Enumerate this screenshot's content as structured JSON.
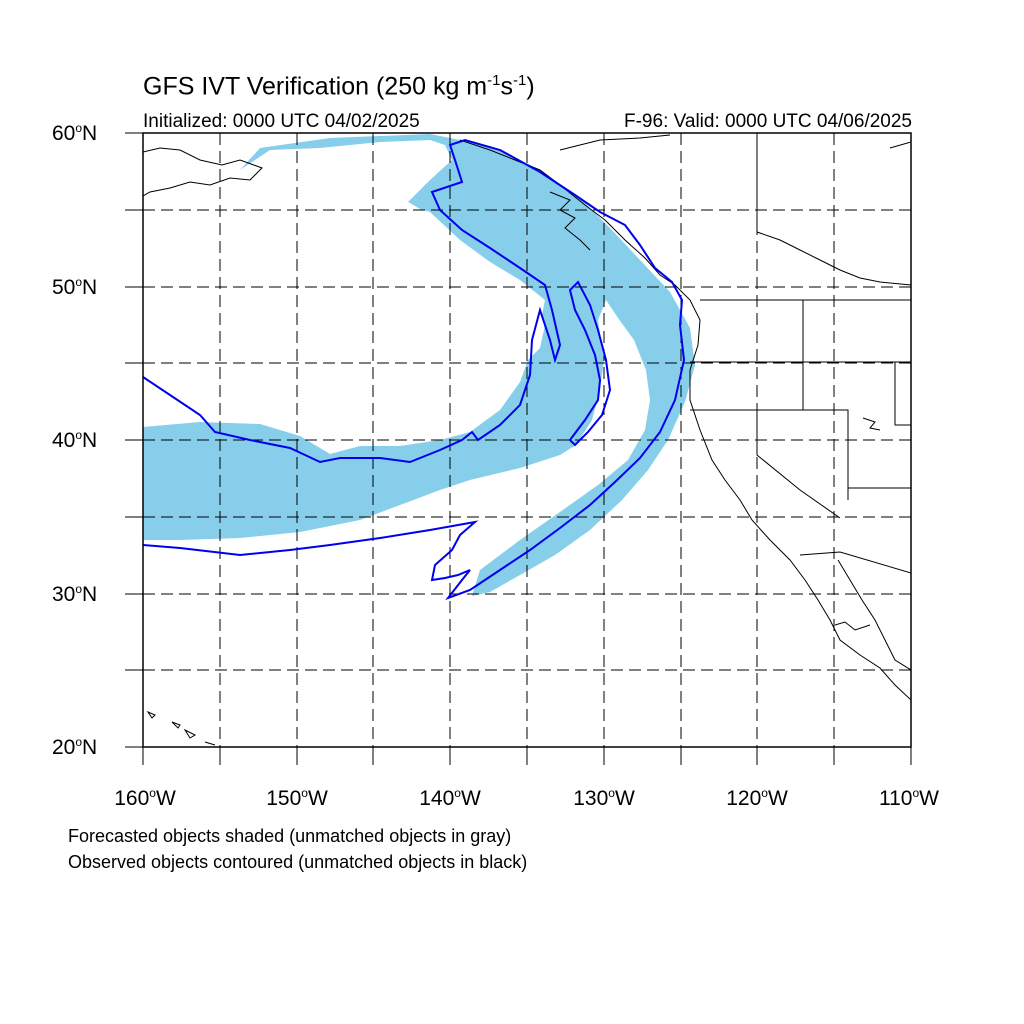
{
  "title": {
    "main": "GFS IVT Verification (250 kg m",
    "exp1": "-1",
    "mid": "s",
    "exp2": "-1",
    "close": ")"
  },
  "subtitle": {
    "left": "Initialized: 0000 UTC 04/02/2025",
    "right": "F-96: Valid: 0000 UTC 04/06/2025"
  },
  "lat_labels": [
    {
      "num": "60",
      "deg": "o",
      "hem": "N"
    },
    {
      "num": "50",
      "deg": "o",
      "hem": "N"
    },
    {
      "num": "40",
      "deg": "o",
      "hem": "N"
    },
    {
      "num": "30",
      "deg": "o",
      "hem": "N"
    },
    {
      "num": "20",
      "deg": "o",
      "hem": "N"
    }
  ],
  "lon_labels": [
    {
      "num": "160",
      "deg": "o",
      "hem": "W"
    },
    {
      "num": "150",
      "deg": "o",
      "hem": "W"
    },
    {
      "num": "140",
      "deg": "o",
      "hem": "W"
    },
    {
      "num": "130",
      "deg": "o",
      "hem": "W"
    },
    {
      "num": "120",
      "deg": "o",
      "hem": "W"
    },
    {
      "num": "110",
      "deg": "o",
      "hem": "W"
    }
  ],
  "notes": {
    "forecast": "Forecasted objects shaded (unmatched objects in gray)",
    "observed": "Observed objects contoured (unmatched objects in black)"
  },
  "colors": {
    "forecast_fill": "#87ceeb",
    "observed_contour": "#0000ee",
    "grid": "#000000",
    "coast": "#000000"
  }
}
